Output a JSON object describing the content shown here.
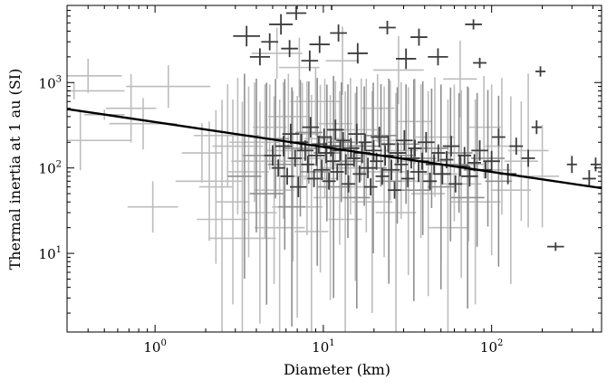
{
  "chart_data": {
    "type": "scatter",
    "title": "",
    "xlabel": "Diameter (km)",
    "ylabel": "Thermal inertia at 1 au (SI)",
    "xscale": "log",
    "yscale": "log",
    "xlim": [
      0.3,
      450
    ],
    "ylim": [
      1.2,
      8000
    ],
    "grid": false,
    "legend": "none",
    "x_tick_labels": [
      {
        "value": 1,
        "base": "10",
        "exp": "0"
      },
      {
        "value": 10,
        "base": "10",
        "exp": "1"
      },
      {
        "value": 100,
        "base": "10",
        "exp": "2"
      }
    ],
    "y_tick_labels": [
      {
        "value": 10,
        "base": "10",
        "exp": "1"
      },
      {
        "value": 100,
        "base": "10",
        "exp": "2"
      },
      {
        "value": 1000,
        "base": "10",
        "exp": "3"
      }
    ],
    "fit_line": {
      "x": [
        0.3,
        450
      ],
      "y": [
        490,
        58
      ],
      "color": "#000000"
    },
    "series": [
      {
        "color": "#bdbdbd",
        "points": [
          [
            0.33,
            800,
            0.3,
            0.1
          ],
          [
            0.36,
            210,
            0.3,
            0.35
          ],
          [
            0.4,
            1200,
            0.2,
            0.2
          ],
          [
            0.5,
            420,
            0.12,
            0.06
          ],
          [
            0.72,
            500,
            0.15,
            0.4
          ],
          [
            0.85,
            330,
            0.2,
            0.3
          ],
          [
            0.97,
            35,
            0.15,
            0.3
          ],
          [
            1.2,
            900,
            0.25,
            0.25
          ],
          [
            1.9,
            150,
            0.12,
            0.35
          ],
          [
            2.1,
            70,
            0.2,
            0.7
          ],
          [
            2.3,
            60,
            0.1,
            0.9
          ],
          [
            2.5,
            25,
            0.15,
            1.4
          ],
          [
            2.7,
            240,
            0.2,
            0.6
          ],
          [
            2.9,
            40,
            0.1,
            1.2
          ],
          [
            3.1,
            180,
            0.15,
            0.8
          ],
          [
            3.3,
            15,
            0.2,
            1.6
          ],
          [
            3.6,
            90,
            0.12,
            1.0
          ],
          [
            3.9,
            200,
            0.15,
            0.7
          ],
          [
            4.2,
            30,
            0.1,
            1.3
          ],
          [
            4.5,
            120,
            0.2,
            0.9
          ],
          [
            4.8,
            300,
            0.1,
            0.5
          ],
          [
            5.1,
            55,
            0.12,
            1.1
          ],
          [
            5.5,
            20,
            0.15,
            1.5
          ],
          [
            5.8,
            160,
            0.1,
            0.8
          ],
          [
            6.2,
            400,
            0.12,
            0.5
          ],
          [
            6.6,
            80,
            0.1,
            1.0
          ],
          [
            7.0,
            35,
            0.15,
            1.3
          ],
          [
            7.5,
            250,
            0.1,
            0.6
          ],
          [
            8.0,
            130,
            0.12,
            0.9
          ],
          [
            8.5,
            18,
            0.1,
            1.6
          ],
          [
            9.0,
            600,
            0.15,
            0.4
          ],
          [
            9.6,
            75,
            0.1,
            1.1
          ],
          [
            10.2,
            220,
            0.12,
            0.7
          ],
          [
            11.0,
            45,
            0.1,
            1.2
          ],
          [
            11.8,
            330,
            0.1,
            0.5
          ],
          [
            12.5,
            100,
            0.12,
            0.9
          ],
          [
            13.5,
            25,
            0.1,
            1.5
          ],
          [
            14.5,
            180,
            0.15,
            0.8
          ],
          [
            15.5,
            60,
            0.1,
            1.1
          ],
          [
            16.8,
            280,
            0.12,
            0.6
          ],
          [
            18.0,
            140,
            0.1,
            0.9
          ],
          [
            19.5,
            40,
            0.12,
            1.3
          ],
          [
            21.0,
            500,
            0.1,
            0.4
          ],
          [
            23.0,
            90,
            0.15,
            1.0
          ],
          [
            25.0,
            210,
            0.1,
            0.7
          ],
          [
            27.0,
            30,
            0.12,
            1.4
          ],
          [
            29.0,
            160,
            0.1,
            0.8
          ],
          [
            32.0,
            70,
            0.12,
            1.1
          ],
          [
            35.0,
            350,
            0.1,
            0.5
          ],
          [
            38.0,
            120,
            0.15,
            0.9
          ],
          [
            42.0,
            50,
            0.1,
            1.2
          ],
          [
            46.0,
            230,
            0.12,
            0.7
          ],
          [
            50.0,
            85,
            0.1,
            1.0
          ],
          [
            55.0,
            20,
            0.12,
            1.5
          ],
          [
            60.0,
            150,
            0.1,
            0.8
          ],
          [
            66.0,
            65,
            0.12,
            1.1
          ],
          [
            73.0,
            110,
            0.1,
            0.9
          ],
          [
            80.0,
            40,
            0.15,
            1.2
          ],
          [
            90.0,
            300,
            0.1,
            0.6
          ],
          [
            100.0,
            95,
            0.12,
            1.0
          ],
          [
            115.0,
            180,
            0.1,
            0.8
          ],
          [
            130.0,
            55,
            0.12,
            1.1
          ],
          [
            150.0,
            120,
            0.1,
            0.7
          ],
          [
            165.0,
            160,
            0.12,
            0.9
          ],
          [
            200.0,
            80,
            0.1,
            0.6
          ],
          [
            5.3,
            2200,
            0.15,
            0.3
          ],
          [
            7.2,
            1500,
            0.12,
            0.35
          ],
          [
            13.0,
            1800,
            0.1,
            0.4
          ],
          [
            28.0,
            1400,
            0.15,
            0.4
          ],
          [
            65.0,
            1100,
            0.1,
            0.45
          ]
        ]
      },
      {
        "color": "#8f8f8f",
        "points": [
          [
            3.4,
            80,
            0.1,
            1.2
          ],
          [
            4.0,
            140,
            0.08,
            0.9
          ],
          [
            4.6,
            50,
            0.1,
            1.3
          ],
          [
            5.2,
            220,
            0.08,
            0.7
          ],
          [
            5.9,
            110,
            0.1,
            1.0
          ],
          [
            6.5,
            35,
            0.08,
            1.4
          ],
          [
            7.3,
            170,
            0.1,
            0.8
          ],
          [
            8.2,
            260,
            0.08,
            0.6
          ],
          [
            9.2,
            90,
            0.1,
            1.1
          ],
          [
            10.5,
            150,
            0.08,
            0.8
          ],
          [
            11.5,
            60,
            0.1,
            1.3
          ],
          [
            12.8,
            200,
            0.08,
            0.7
          ],
          [
            14.0,
            120,
            0.1,
            0.9
          ],
          [
            15.8,
            45,
            0.08,
            1.3
          ],
          [
            17.5,
            180,
            0.1,
            0.7
          ],
          [
            19.8,
            100,
            0.08,
            1.0
          ],
          [
            22.0,
            240,
            0.1,
            0.6
          ],
          [
            24.5,
            70,
            0.08,
            1.2
          ],
          [
            27.5,
            140,
            0.1,
            0.8
          ],
          [
            31.0,
            190,
            0.08,
            0.7
          ],
          [
            34.5,
            55,
            0.1,
            1.3
          ],
          [
            39.0,
            130,
            0.08,
            0.9
          ],
          [
            44.0,
            170,
            0.1,
            0.7
          ],
          [
            50.0,
            60,
            0.08,
            1.2
          ],
          [
            57.0,
            110,
            0.1,
            0.9
          ],
          [
            64.0,
            150,
            0.08,
            0.7
          ],
          [
            72.0,
            45,
            0.1,
            1.3
          ],
          [
            82.0,
            95,
            0.08,
            0.9
          ],
          [
            95.0,
            130,
            0.1,
            0.8
          ],
          [
            110.0,
            70,
            0.08,
            1.0
          ]
        ]
      },
      {
        "color": "#3c3c3c",
        "points": [
          [
            3.5,
            3500,
            0.08,
            0.12
          ],
          [
            4.2,
            2000,
            0.06,
            0.1
          ],
          [
            4.8,
            3000,
            0.05,
            0.1
          ],
          [
            5.6,
            4800,
            0.07,
            0.12
          ],
          [
            6.3,
            2500,
            0.05,
            0.1
          ],
          [
            6.9,
            6500,
            0.06,
            0.08
          ],
          [
            8.3,
            1800,
            0.05,
            0.12
          ],
          [
            9.5,
            2800,
            0.06,
            0.1
          ],
          [
            11.2,
            8500,
            0.07,
            0.08
          ],
          [
            12.3,
            3800,
            0.05,
            0.1
          ],
          [
            16.0,
            2200,
            0.06,
            0.12
          ],
          [
            24.0,
            4400,
            0.05,
            0.08
          ],
          [
            31.0,
            1900,
            0.06,
            0.12
          ],
          [
            37.0,
            3400,
            0.05,
            0.1
          ],
          [
            48.0,
            2000,
            0.06,
            0.1
          ],
          [
            78.0,
            4800,
            0.05,
            0.06
          ],
          [
            85.0,
            1700,
            0.04,
            0.06
          ],
          [
            185.0,
            300,
            0.03,
            0.08
          ],
          [
            195.0,
            1350,
            0.03,
            0.06
          ],
          [
            240.0,
            12,
            0.05,
            0.05
          ],
          [
            380.0,
            75,
            0.04,
            0.1
          ],
          [
            5.0,
            140,
            0.05,
            0.12
          ],
          [
            5.4,
            100,
            0.04,
            0.1
          ],
          [
            5.8,
            180,
            0.05,
            0.12
          ],
          [
            6.1,
            80,
            0.04,
            0.1
          ],
          [
            6.4,
            250,
            0.05,
            0.12
          ],
          [
            6.8,
            130,
            0.04,
            0.1
          ],
          [
            7.1,
            60,
            0.05,
            0.12
          ],
          [
            7.4,
            200,
            0.04,
            0.1
          ],
          [
            7.8,
            160,
            0.05,
            0.12
          ],
          [
            8.1,
            110,
            0.04,
            0.1
          ],
          [
            8.4,
            300,
            0.05,
            0.12
          ],
          [
            8.8,
            75,
            0.04,
            0.1
          ],
          [
            9.1,
            140,
            0.05,
            0.12
          ],
          [
            9.4,
            190,
            0.04,
            0.1
          ],
          [
            9.8,
            95,
            0.05,
            0.12
          ],
          [
            10.1,
            230,
            0.04,
            0.1
          ],
          [
            10.4,
            150,
            0.05,
            0.12
          ],
          [
            10.8,
            70,
            0.04,
            0.1
          ],
          [
            11.1,
            180,
            0.05,
            0.12
          ],
          [
            11.4,
            120,
            0.04,
            0.1
          ],
          [
            11.8,
            280,
            0.05,
            0.12
          ],
          [
            12.1,
            90,
            0.04,
            0.1
          ],
          [
            12.6,
            160,
            0.05,
            0.12
          ],
          [
            13.1,
            210,
            0.04,
            0.1
          ],
          [
            13.6,
            110,
            0.05,
            0.12
          ],
          [
            14.1,
            65,
            0.04,
            0.1
          ],
          [
            14.6,
            170,
            0.05,
            0.12
          ],
          [
            15.2,
            130,
            0.04,
            0.1
          ],
          [
            15.8,
            250,
            0.05,
            0.12
          ],
          [
            16.4,
            85,
            0.04,
            0.1
          ],
          [
            17.0,
            150,
            0.05,
            0.12
          ],
          [
            17.7,
            200,
            0.04,
            0.1
          ],
          [
            18.4,
            100,
            0.05,
            0.12
          ],
          [
            19.1,
            60,
            0.04,
            0.1
          ],
          [
            19.9,
            160,
            0.05,
            0.12
          ],
          [
            20.7,
            120,
            0.04,
            0.1
          ],
          [
            21.5,
            230,
            0.05,
            0.12
          ],
          [
            22.4,
            80,
            0.04,
            0.1
          ],
          [
            23.3,
            140,
            0.05,
            0.12
          ],
          [
            24.3,
            190,
            0.04,
            0.1
          ],
          [
            25.4,
            95,
            0.05,
            0.12
          ],
          [
            26.5,
            55,
            0.04,
            0.1
          ],
          [
            27.7,
            150,
            0.05,
            0.12
          ],
          [
            29.0,
            110,
            0.04,
            0.1
          ],
          [
            30.3,
            210,
            0.05,
            0.12
          ],
          [
            31.8,
            75,
            0.04,
            0.1
          ],
          [
            33.3,
            130,
            0.05,
            0.12
          ],
          [
            35.0,
            170,
            0.04,
            0.1
          ],
          [
            36.8,
            90,
            0.05,
            0.12
          ],
          [
            38.7,
            120,
            0.04,
            0.1
          ],
          [
            40.8,
            200,
            0.05,
            0.12
          ],
          [
            43.0,
            70,
            0.04,
            0.1
          ],
          [
            45.5,
            110,
            0.05,
            0.12
          ],
          [
            48.2,
            150,
            0.04,
            0.1
          ],
          [
            51.0,
            85,
            0.05,
            0.12
          ],
          [
            54.0,
            125,
            0.04,
            0.1
          ],
          [
            57.5,
            180,
            0.05,
            0.12
          ],
          [
            61.0,
            65,
            0.04,
            0.1
          ],
          [
            65.0,
            105,
            0.05,
            0.12
          ],
          [
            69.0,
            140,
            0.04,
            0.1
          ],
          [
            74.0,
            80,
            0.05,
            0.12
          ],
          [
            79.0,
            115,
            0.04,
            0.1
          ],
          [
            85.0,
            160,
            0.05,
            0.12
          ],
          [
            92.0,
            95,
            0.04,
            0.1
          ],
          [
            100.0,
            120,
            0.05,
            0.12
          ],
          [
            110.0,
            230,
            0.04,
            0.1
          ],
          [
            125.0,
            85,
            0.05,
            0.12
          ],
          [
            140.0,
            180,
            0.04,
            0.1
          ],
          [
            300.0,
            110,
            0.03,
            0.1
          ],
          [
            415.0,
            110,
            0.03,
            0.08
          ],
          [
            165.0,
            130,
            0.04,
            0.1
          ]
        ]
      }
    ]
  }
}
